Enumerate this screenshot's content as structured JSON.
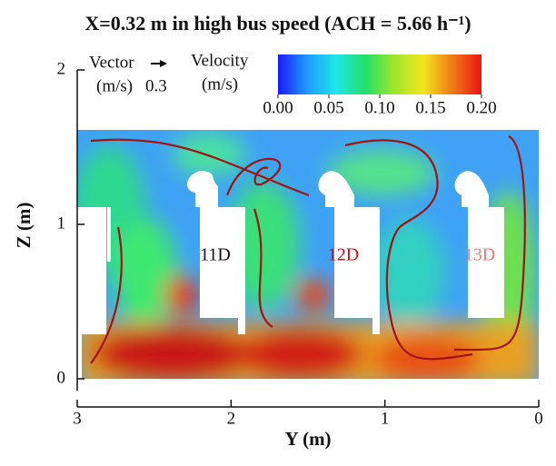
{
  "chart_data": {
    "type": "contour",
    "title": "X=0.32 m in high bus speed (ACH = 5.66 h⁻¹)",
    "x_label": "Y (m)",
    "y_label": "Z (m)",
    "xlim": [
      3,
      0
    ],
    "xticks": [
      3,
      2,
      1,
      0
    ],
    "ylim": [
      0,
      2
    ],
    "yticks": [
      0,
      1,
      2
    ],
    "vector_legend": {
      "label": "Vector",
      "unit": "(m/s)",
      "scale": 0.3
    },
    "colorbar": {
      "label": "Velocity",
      "unit": "(m/s)",
      "lim": [
        0,
        0.2
      ],
      "ticks": [
        {
          "value": 0,
          "label": "0.00"
        },
        {
          "value": 0.05,
          "label": "0.05"
        },
        {
          "value": 0.1,
          "label": "0.10"
        },
        {
          "value": 0.15,
          "label": "0.15"
        },
        {
          "value": 0.2,
          "label": "0.20"
        }
      ],
      "colormap": [
        "#1a1aff",
        "#1e9bff",
        "#1ee6e6",
        "#22e06a",
        "#9ee62a",
        "#f2e61e",
        "#f27a14",
        "#e81414"
      ]
    },
    "seat_labels": [
      {
        "text": "11D",
        "color": "#111111"
      },
      {
        "text": "12D",
        "color": "#c0141e"
      },
      {
        "text": "13D",
        "color": "#e87a82"
      }
    ]
  }
}
